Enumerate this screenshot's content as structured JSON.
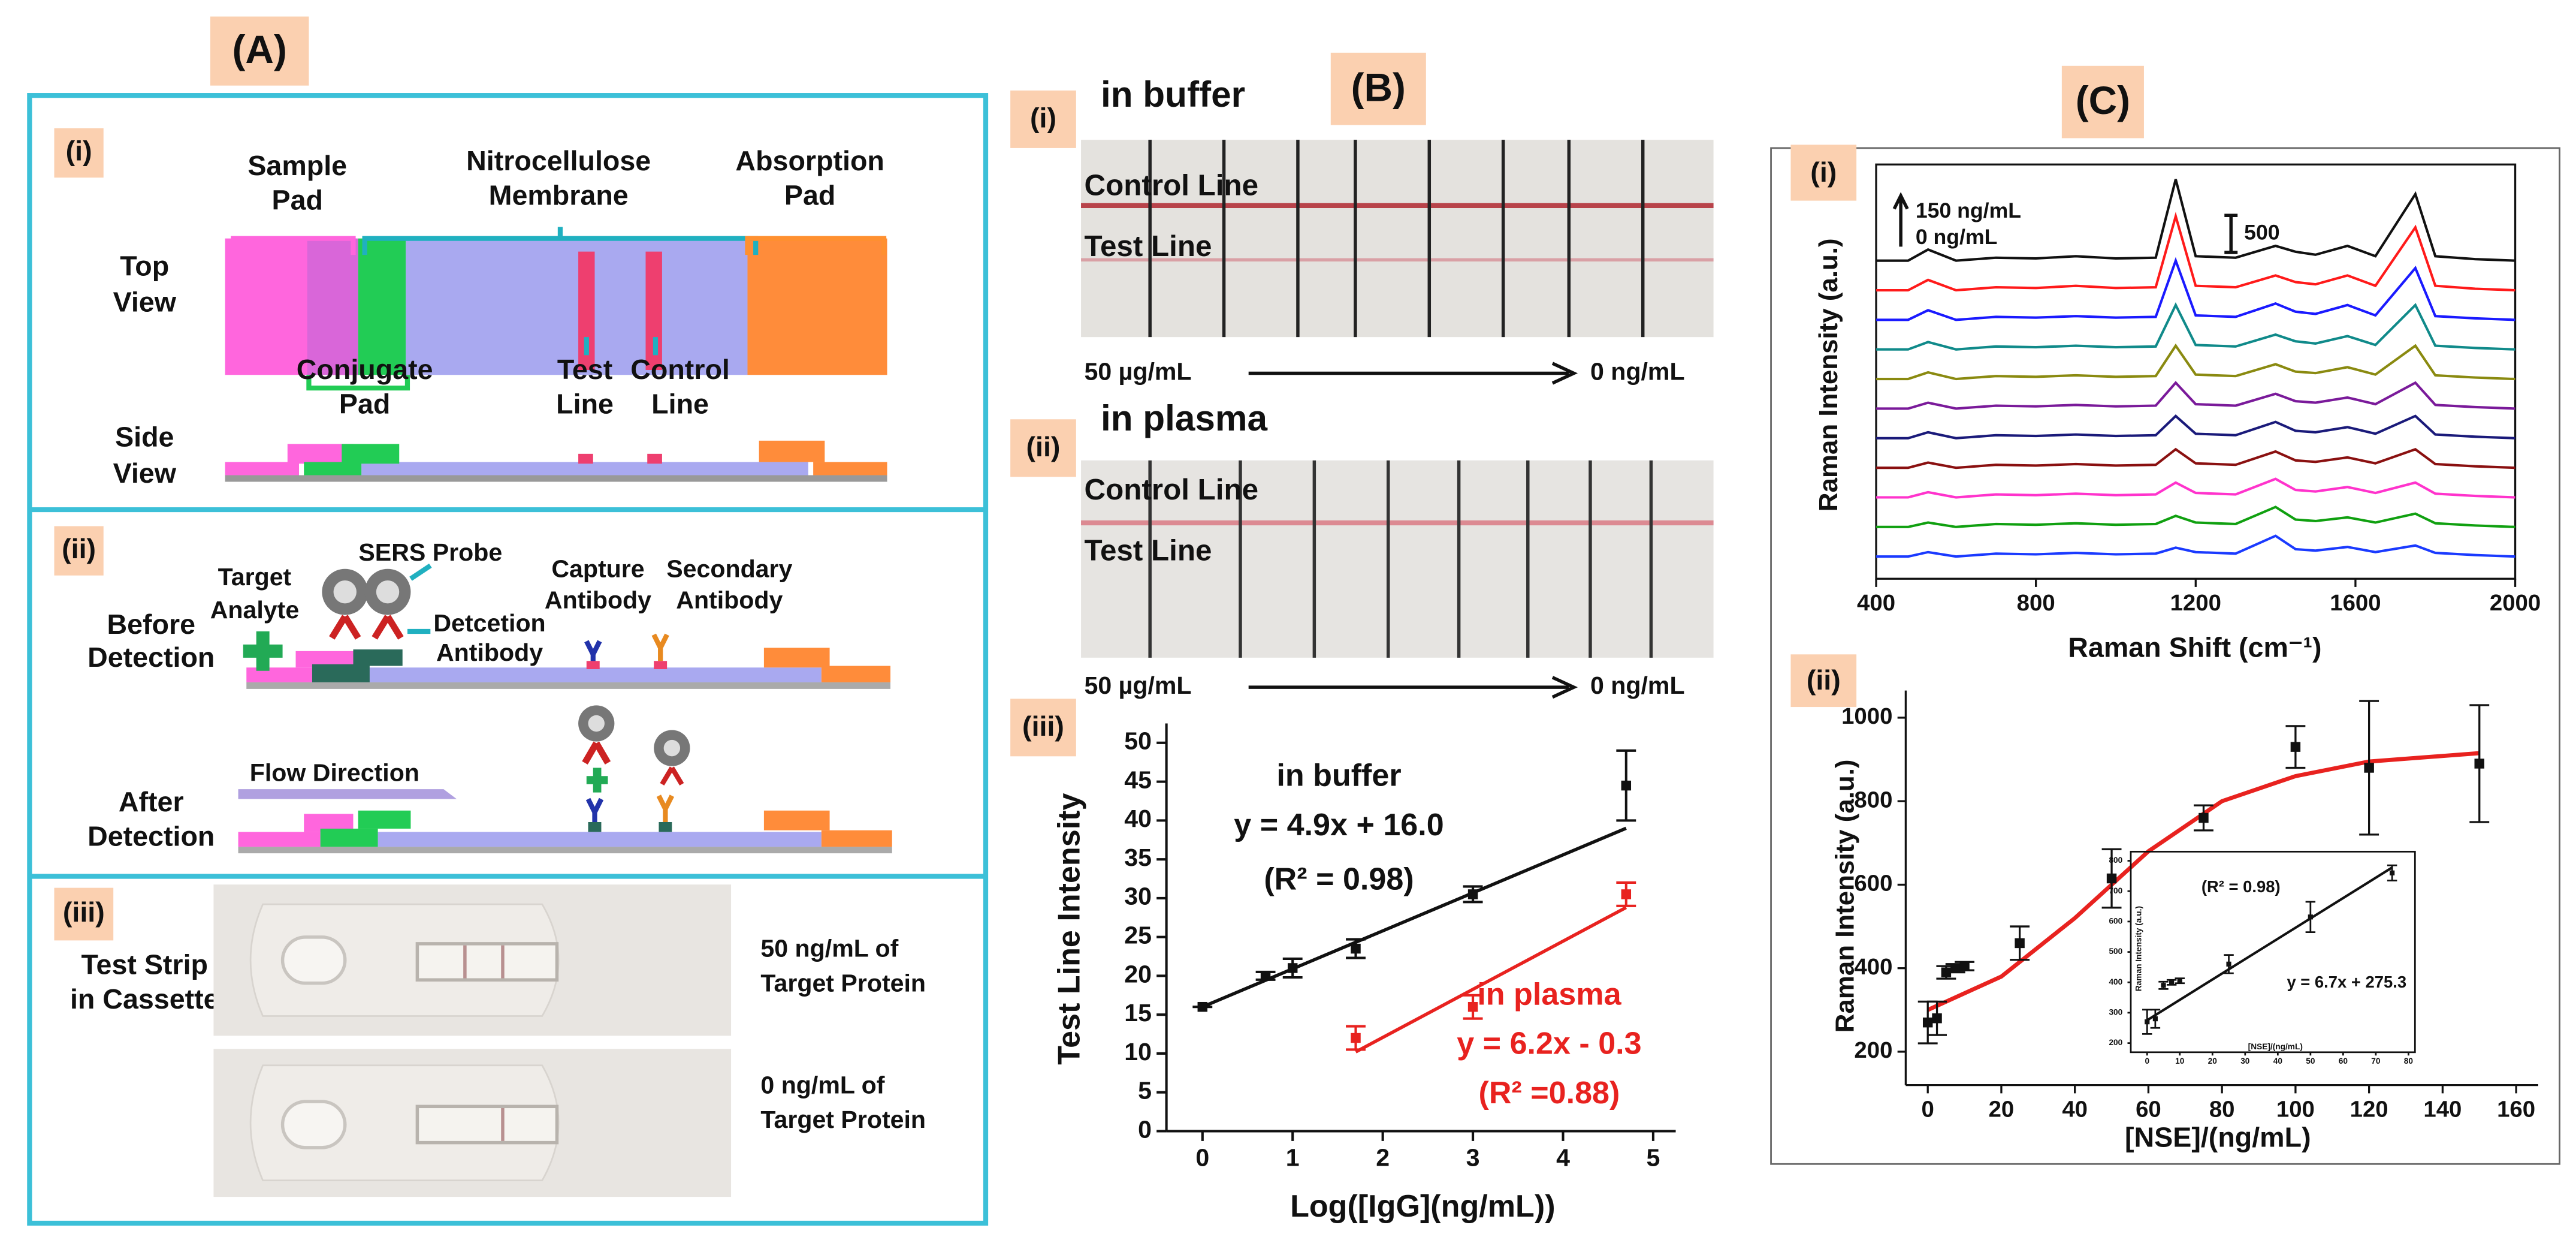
{
  "panel_a": {
    "label": "(A)",
    "i": {
      "label": "(i)",
      "sample_pad": [
        "Sample",
        "Pad"
      ],
      "membrane": [
        "Nitrocellulose",
        "Membrane"
      ],
      "absorption_pad": [
        "Absorption",
        "Pad"
      ],
      "top_view": [
        "Top",
        "View"
      ],
      "conjugate_pad": [
        "Conjugate",
        "Pad"
      ],
      "test_line": [
        "Test",
        "Line"
      ],
      "control_line": [
        "Control",
        "Line"
      ],
      "side_view": [
        "Side",
        "View"
      ]
    },
    "ii": {
      "label": "(ii)",
      "target": [
        "Target",
        "Analyte"
      ],
      "sers_probe": "SERS Probe",
      "detection_antibody": [
        "Detcetion",
        "Antibody"
      ],
      "capture_antibody": [
        "Capture",
        "Antibody"
      ],
      "secondary_antibody": [
        "Secondary",
        "Antibody"
      ],
      "before": [
        "Before",
        "Detection"
      ],
      "flow": "Flow Direction",
      "after": [
        "After",
        "Detection"
      ]
    },
    "iii": {
      "label": "(iii)",
      "strip": [
        "Test Strip",
        "in Cassette"
      ],
      "high": [
        "50 ng/mL of",
        "Target Protein"
      ],
      "low": [
        "0 ng/mL of",
        "Target Protein"
      ]
    }
  },
  "panel_b": {
    "label": "(B)",
    "i": {
      "label": "(i)",
      "title": "in buffer",
      "control": "Control Line",
      "test": "Test Line",
      "from": "50 µg/mL",
      "to": "0 ng/mL"
    },
    "ii": {
      "label": "(ii)",
      "title": "in plasma",
      "control": "Control Line",
      "test": "Test Line",
      "from": "50 µg/mL",
      "to": "0 ng/mL"
    },
    "iii": {
      "label": "(iii)"
    }
  },
  "panel_c": {
    "label": "(C)",
    "i": {
      "label": "(i)"
    },
    "ii": {
      "label": "(ii)"
    }
  },
  "chart_data": [
    {
      "type": "scatter",
      "xlabel": "Log([IgG](ng/mL))",
      "ylabel": "Test Line Intensity",
      "frame": "axes",
      "xlim": [
        -0.4,
        5.25
      ],
      "ylim": [
        0,
        52.5
      ],
      "xticks": [
        0,
        1,
        2,
        3,
        4,
        5
      ],
      "yticks": [
        0,
        5,
        10,
        15,
        20,
        25,
        30,
        35,
        40,
        45,
        50
      ],
      "annotations": [
        [
          "in buffer",
          "y = 4.9x + 16.0",
          "(R² = 0.98)"
        ],
        [
          "in plasma",
          "y = 6.2x - 0.3",
          "(R² =0.88)"
        ]
      ],
      "series": [
        {
          "name": "in buffer",
          "color": "#111111",
          "x": [
            0,
            0.7,
            1,
            1.7,
            3,
            4.7
          ],
          "values": [
            16,
            20,
            21,
            23.5,
            30.5,
            44.5
          ],
          "errors": [
            0,
            0.5,
            1.2,
            1.2,
            1,
            4.5
          ],
          "fit": {
            "x": [
              0,
              4.7
            ],
            "values": [
              16,
              39
            ]
          }
        },
        {
          "name": "in plasma",
          "color": "#e8221f",
          "x": [
            1.7,
            3,
            4.7
          ],
          "values": [
            12,
            16,
            30.5
          ],
          "errors": [
            1.5,
            1.5,
            1.5
          ],
          "fit": {
            "x": [
              1.7,
              4.7
            ],
            "values": [
              10.2,
              28.8
            ]
          }
        }
      ]
    },
    {
      "type": "line",
      "xlabel": "Raman Shift (cm⁻¹)",
      "ylabel": "Raman Intensity (a.u.)",
      "frame": "box",
      "xlim": [
        400,
        2000
      ],
      "ylim": [
        0,
        5600
      ],
      "xticks": [
        400,
        800,
        1200,
        1600,
        2000
      ],
      "annotations": [
        "150 ng/mL",
        "0 ng/mL"
      ],
      "scale_bar": 500,
      "x": [
        400,
        480,
        530,
        600,
        700,
        800,
        900,
        1000,
        1100,
        1150,
        1200,
        1300,
        1400,
        1450,
        1500,
        1580,
        1650,
        1750,
        1800,
        1900,
        2000
      ],
      "series": [
        {
          "color": "#111111",
          "values": [
            4300,
            4300,
            4450,
            4300,
            4340,
            4330,
            4360,
            4330,
            4340,
            5400,
            4360,
            4340,
            4500,
            4420,
            4380,
            4500,
            4360,
            5200,
            4360,
            4320,
            4300
          ]
        },
        {
          "color": "#ff1a1a",
          "values": [
            3900,
            3900,
            4040,
            3900,
            3940,
            3930,
            3960,
            3930,
            3940,
            4900,
            3960,
            3940,
            4100,
            4010,
            3980,
            4100,
            3960,
            4750,
            3960,
            3920,
            3900
          ]
        },
        {
          "color": "#1a1aff",
          "values": [
            3500,
            3500,
            3630,
            3500,
            3540,
            3530,
            3550,
            3530,
            3540,
            4300,
            3560,
            3540,
            3720,
            3610,
            3580,
            3700,
            3560,
            4200,
            3550,
            3520,
            3500
          ]
        },
        {
          "color": "#108a8a",
          "values": [
            3100,
            3100,
            3200,
            3100,
            3140,
            3130,
            3150,
            3130,
            3140,
            3700,
            3160,
            3140,
            3300,
            3210,
            3180,
            3280,
            3160,
            3700,
            3150,
            3120,
            3100
          ]
        },
        {
          "color": "#8a8a10",
          "values": [
            2700,
            2700,
            2790,
            2700,
            2740,
            2730,
            2750,
            2730,
            2740,
            3150,
            2760,
            2740,
            2900,
            2800,
            2780,
            2860,
            2760,
            3150,
            2750,
            2720,
            2700
          ]
        },
        {
          "color": "#7a1a9a",
          "values": [
            2300,
            2300,
            2380,
            2300,
            2340,
            2330,
            2350,
            2330,
            2340,
            2650,
            2360,
            2340,
            2500,
            2400,
            2380,
            2450,
            2360,
            2650,
            2350,
            2320,
            2300
          ]
        },
        {
          "color": "#1a1a7a",
          "values": [
            1900,
            1900,
            1980,
            1900,
            1940,
            1930,
            1950,
            1930,
            1940,
            2200,
            1960,
            1940,
            2120,
            2000,
            1980,
            2050,
            1960,
            2200,
            1950,
            1920,
            1900
          ]
        },
        {
          "color": "#8a1010",
          "values": [
            1500,
            1500,
            1570,
            1500,
            1540,
            1530,
            1550,
            1530,
            1540,
            1750,
            1560,
            1540,
            1720,
            1600,
            1580,
            1640,
            1560,
            1750,
            1550,
            1520,
            1500
          ]
        },
        {
          "color": "#ff33cc",
          "values": [
            1100,
            1100,
            1170,
            1100,
            1140,
            1130,
            1150,
            1130,
            1140,
            1300,
            1160,
            1140,
            1350,
            1200,
            1180,
            1240,
            1160,
            1300,
            1150,
            1120,
            1100
          ]
        },
        {
          "color": "#10a010",
          "values": [
            700,
            700,
            760,
            700,
            740,
            730,
            750,
            730,
            740,
            850,
            760,
            740,
            970,
            800,
            780,
            830,
            760,
            880,
            750,
            720,
            700
          ]
        },
        {
          "color": "#1a3aff",
          "values": [
            300,
            300,
            360,
            300,
            340,
            330,
            350,
            330,
            340,
            420,
            360,
            340,
            580,
            400,
            380,
            430,
            360,
            450,
            350,
            320,
            300
          ]
        }
      ]
    },
    {
      "type": "scatter",
      "xlabel": "[NSE]/(ng/mL)",
      "ylabel": "Raman Intensity (a.u.)",
      "frame": "axes",
      "xlim": [
        -6,
        166
      ],
      "ylim": [
        120,
        1065
      ],
      "xticks": [
        0,
        20,
        40,
        60,
        80,
        100,
        120,
        140,
        160
      ],
      "yticks": [
        200,
        400,
        600,
        800,
        1000
      ],
      "series": [
        {
          "color": "#111111",
          "x": [
            0,
            2.5,
            5,
            7.5,
            10,
            25,
            50,
            75,
            100,
            120,
            150
          ],
          "values": [
            270,
            280,
            390,
            400,
            405,
            460,
            615,
            760,
            930,
            880,
            890
          ],
          "errors": [
            50,
            40,
            15,
            10,
            10,
            40,
            70,
            30,
            50,
            160,
            140
          ],
          "fit": {
            "color": "#e8221f",
            "x": [
              0,
              20,
              40,
              60,
              80,
              100,
              120,
              150
            ],
            "values": [
              300,
              380,
              520,
              680,
              800,
              860,
              895,
              915
            ]
          }
        }
      ]
    },
    {
      "type": "scatter",
      "xlabel": "[NSE]/(ng/mL)",
      "ylabel": "Raman Intensity (a.u.)",
      "frame": "box",
      "xlim": [
        -5,
        82
      ],
      "ylim": [
        170,
        830
      ],
      "xticks": [
        0,
        10,
        20,
        30,
        40,
        50,
        60,
        70,
        80
      ],
      "yticks": [
        200,
        300,
        400,
        500,
        600,
        700,
        800
      ],
      "annotations": [
        "(R² = 0.98)",
        "y = 6.7x + 275.3"
      ],
      "series": [
        {
          "color": "#111111",
          "x": [
            0,
            2.5,
            5,
            7.5,
            10,
            25,
            50,
            75
          ],
          "values": [
            270,
            280,
            390,
            400,
            405,
            460,
            615,
            760
          ],
          "errors": [
            40,
            30,
            12,
            8,
            8,
            30,
            50,
            25
          ],
          "fit": {
            "color": "#111111",
            "x": [
              0,
              75
            ],
            "values": [
              275.3,
              777.8
            ]
          }
        }
      ]
    }
  ]
}
